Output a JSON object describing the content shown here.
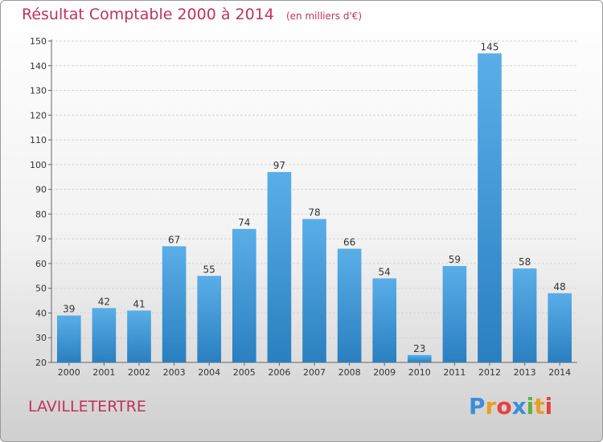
{
  "chart_data": {
    "type": "bar",
    "title": "Résultat Comptable 2000 à 2014",
    "subtitle": "(en milliers d'€)",
    "categories": [
      "2000",
      "2001",
      "2002",
      "2003",
      "2004",
      "2005",
      "2006",
      "2007",
      "2008",
      "2009",
      "2010",
      "2011",
      "2012",
      "2013",
      "2014"
    ],
    "values": [
      39,
      42,
      41,
      67,
      55,
      74,
      97,
      78,
      66,
      54,
      23,
      59,
      145,
      58,
      48
    ],
    "ylim": [
      20,
      150
    ],
    "yticks": [
      20,
      30,
      40,
      50,
      60,
      70,
      80,
      90,
      100,
      110,
      120,
      130,
      140,
      150
    ],
    "grid": true,
    "bar_color_top": "#5aaee8",
    "bar_color_bottom": "#2a7fc0"
  },
  "commune": "LAVILLETERTRE",
  "logo": {
    "letters": [
      "P",
      "r",
      "o",
      "x",
      "i",
      "t",
      "i"
    ],
    "colors": [
      "#3a8fd8",
      "#e8a020",
      "#e84040",
      "#3a8fd8",
      "#60b040",
      "#e8a020",
      "#e84040"
    ]
  },
  "colors": {
    "title": "#c0325c"
  }
}
